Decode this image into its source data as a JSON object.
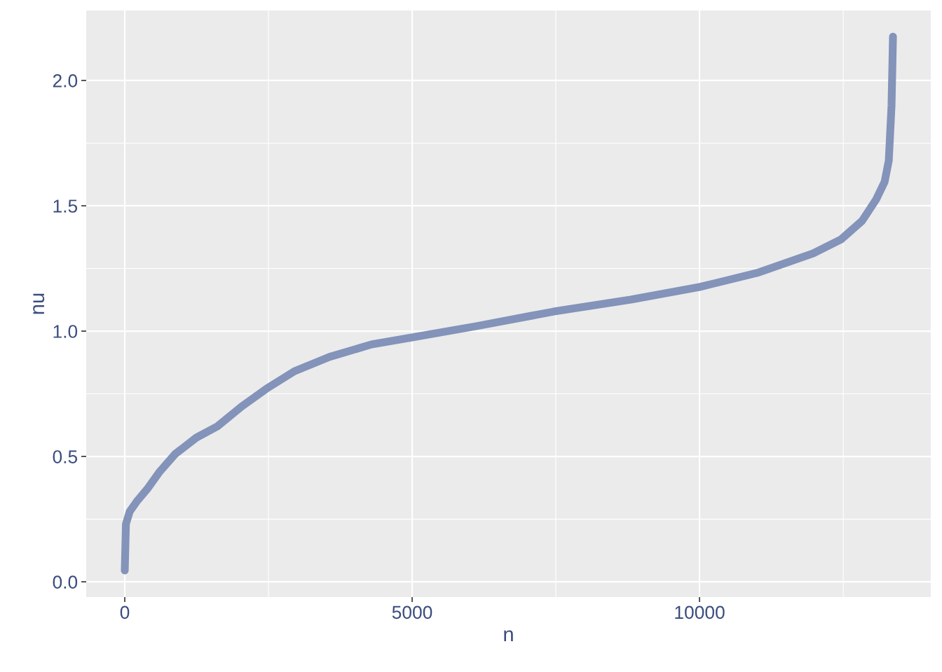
{
  "chart_data": {
    "type": "line",
    "xlabel": "n",
    "ylabel": "nu",
    "x": [
      0,
      10,
      20,
      85,
      207,
      390,
      610,
      878,
      1244,
      1610,
      2037,
      2463,
      2951,
      3561,
      4293,
      5000,
      6122,
      7463,
      8805,
      10000,
      11000,
      11976,
      12463,
      12829,
      13073,
      13220,
      13293,
      13317,
      13341,
      13354,
      13366
    ],
    "series": [
      {
        "color": "#8393b9",
        "values": [
          0.045,
          0.14,
          0.23,
          0.28,
          0.32,
          0.37,
          0.44,
          0.51,
          0.575,
          0.62,
          0.7,
          0.77,
          0.84,
          0.897,
          0.947,
          0.975,
          1.02,
          1.078,
          1.126,
          1.176,
          1.232,
          1.31,
          1.366,
          1.44,
          1.525,
          1.595,
          1.68,
          1.79,
          1.9,
          2.04,
          2.175
        ]
      }
    ],
    "xlim": [
      -671,
      14024
    ],
    "ylim": [
      -0.061,
      2.279
    ],
    "xticks": [
      0,
      5000,
      10000
    ],
    "yticks": [
      {
        "value": 0,
        "label": "0.0"
      },
      {
        "value": 0.5,
        "label": "0.5"
      },
      {
        "value": 1,
        "label": "1.0"
      },
      {
        "value": 1.5,
        "label": "1.5"
      },
      {
        "value": 2,
        "label": "2.0"
      }
    ],
    "grid": true,
    "marker": "none",
    "line_style": "solid"
  }
}
